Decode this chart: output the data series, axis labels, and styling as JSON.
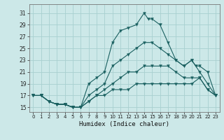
{
  "xlabel": "Humidex (Indice chaleur)",
  "background_color": "#cce8e8",
  "grid_color": "#a8d0d0",
  "line_color": "#1a6060",
  "x_ticks": [
    0,
    1,
    2,
    3,
    4,
    5,
    6,
    7,
    8,
    9,
    10,
    11,
    12,
    13,
    14,
    15,
    16,
    17,
    18,
    19,
    20,
    21,
    22,
    23
  ],
  "y_ticks": [
    15,
    17,
    19,
    21,
    23,
    25,
    27,
    29,
    31
  ],
  "ylim": [
    14.2,
    32.5
  ],
  "xlim": [
    -0.5,
    23.5
  ],
  "lines": [
    {
      "x": [
        0,
        1,
        2,
        3,
        4,
        5,
        6,
        7,
        8,
        9,
        10,
        11,
        12,
        13,
        14,
        14.5,
        15,
        16,
        17,
        18,
        19,
        20,
        21,
        22,
        23
      ],
      "y": [
        17,
        17,
        16,
        15.5,
        15.5,
        15,
        15,
        19,
        20,
        21,
        26,
        28,
        28.5,
        29,
        31,
        30,
        30,
        29,
        26,
        23,
        22,
        23,
        21,
        19,
        17
      ]
    },
    {
      "x": [
        0,
        1,
        2,
        3,
        4,
        5,
        6,
        7,
        8,
        9,
        10,
        11,
        12,
        13,
        14,
        15,
        16,
        17,
        18,
        19,
        20,
        20.5,
        21,
        22,
        23
      ],
      "y": [
        17,
        17,
        16,
        15.5,
        15.5,
        15,
        15,
        17,
        18,
        19,
        22,
        23,
        24,
        25,
        26,
        26,
        25,
        24,
        23,
        22,
        23,
        22,
        22,
        21,
        17
      ]
    },
    {
      "x": [
        0,
        1,
        2,
        3,
        4,
        5,
        6,
        7,
        8,
        9,
        10,
        11,
        12,
        13,
        14,
        15,
        16,
        17,
        18,
        19,
        20,
        21,
        22,
        23
      ],
      "y": [
        17,
        17,
        16,
        15.5,
        15.5,
        15,
        15,
        16,
        17,
        18,
        19,
        20,
        21,
        21,
        22,
        22,
        22,
        22,
        21,
        20,
        20,
        20,
        18,
        17
      ]
    },
    {
      "x": [
        0,
        1,
        2,
        3,
        4,
        5,
        6,
        7,
        8,
        9,
        10,
        11,
        12,
        13,
        14,
        15,
        16,
        17,
        18,
        19,
        20,
        21,
        22,
        23
      ],
      "y": [
        17,
        17,
        16,
        15.5,
        15.5,
        15,
        15,
        16,
        17,
        17,
        18,
        18,
        18,
        19,
        19,
        19,
        19,
        19,
        19,
        19,
        19,
        20,
        18,
        17
      ]
    }
  ]
}
